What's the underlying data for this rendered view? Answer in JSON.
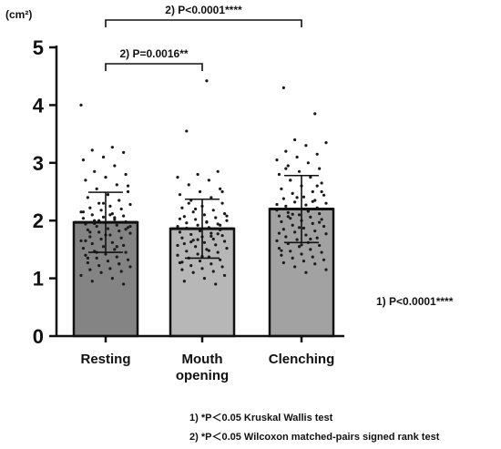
{
  "chart_data": {
    "type": "bar",
    "ylabel": "(cm²)",
    "ylim": [
      0,
      5
    ],
    "yticks": [
      "0",
      "1",
      "2",
      "3",
      "4",
      "5"
    ],
    "categories": [
      "Resting",
      "Mouth opening",
      "Clenching"
    ],
    "category_lines": [
      [
        "Resting"
      ],
      [
        "Mouth",
        "opening"
      ],
      [
        "Clenching"
      ]
    ],
    "values": [
      1.97,
      1.86,
      2.2
    ],
    "sd": [
      0.52,
      0.51,
      0.58
    ],
    "bar_colors": [
      "#848484",
      "#b7b7b7",
      "#a2a2a2"
    ],
    "points": [
      [
        4.0,
        3.27,
        3.22,
        3.18,
        3.1,
        3.05,
        2.95,
        2.85,
        2.8,
        2.75,
        2.7,
        2.62,
        2.55,
        2.5,
        2.45,
        2.4,
        2.35,
        2.3,
        2.28,
        2.25,
        2.22,
        2.2,
        2.18,
        2.15,
        2.12,
        2.1,
        2.08,
        2.06,
        2.04,
        2.02,
        2.0,
        1.98,
        1.96,
        1.94,
        1.92,
        1.9,
        1.88,
        1.86,
        1.84,
        1.82,
        1.8,
        1.78,
        1.75,
        1.72,
        1.7,
        1.68,
        1.65,
        1.62,
        1.6,
        1.57,
        1.55,
        1.52,
        1.5,
        1.47,
        1.45,
        1.42,
        1.4,
        1.37,
        1.35,
        1.32,
        1.3,
        1.27,
        1.25,
        1.22,
        1.2,
        1.17,
        1.15,
        1.12,
        1.1,
        1.05,
        1.0,
        0.95,
        0.9,
        2.3,
        2.15,
        2.05,
        1.95,
        1.85,
        1.75,
        1.65,
        1.55,
        1.45,
        2.6,
        2.45,
        1.35,
        1.25,
        2.0,
        1.9,
        2.1,
        1.8
      ],
      [
        4.42,
        3.55,
        2.85,
        2.8,
        2.75,
        2.7,
        2.62,
        2.55,
        2.5,
        2.45,
        2.4,
        2.35,
        2.3,
        2.25,
        2.22,
        2.18,
        2.15,
        2.12,
        2.1,
        2.07,
        2.05,
        2.02,
        2.0,
        1.98,
        1.96,
        1.94,
        1.92,
        1.9,
        1.88,
        1.86,
        1.84,
        1.82,
        1.8,
        1.78,
        1.76,
        1.74,
        1.72,
        1.7,
        1.68,
        1.66,
        1.64,
        1.62,
        1.6,
        1.58,
        1.55,
        1.52,
        1.5,
        1.47,
        1.45,
        1.42,
        1.4,
        1.37,
        1.35,
        1.32,
        1.3,
        1.27,
        1.25,
        1.22,
        1.2,
        1.17,
        1.15,
        1.12,
        1.1,
        1.05,
        1.0,
        0.95,
        0.9,
        2.2,
        2.08,
        1.97,
        1.87,
        1.77,
        1.67,
        1.57,
        1.48,
        2.3,
        1.92,
        1.83,
        2.03,
        1.73,
        1.63,
        2.5,
        1.38,
        1.28
      ],
      [
        4.3,
        3.85,
        3.4,
        3.35,
        3.3,
        3.2,
        3.15,
        3.1,
        3.05,
        3.0,
        2.95,
        2.9,
        2.85,
        2.8,
        2.75,
        2.7,
        2.65,
        2.6,
        2.55,
        2.5,
        2.47,
        2.44,
        2.41,
        2.38,
        2.35,
        2.32,
        2.3,
        2.27,
        2.25,
        2.22,
        2.2,
        2.18,
        2.16,
        2.14,
        2.12,
        2.1,
        2.08,
        2.06,
        2.04,
        2.02,
        2.0,
        1.98,
        1.95,
        1.92,
        1.9,
        1.87,
        1.85,
        1.82,
        1.8,
        1.77,
        1.75,
        1.72,
        1.7,
        1.67,
        1.65,
        1.62,
        1.6,
        1.57,
        1.55,
        1.52,
        1.5,
        1.47,
        1.45,
        1.42,
        1.4,
        1.37,
        1.35,
        1.32,
        1.3,
        1.27,
        1.25,
        1.2,
        1.15,
        1.1,
        2.9,
        2.6,
        2.4,
        2.28,
        2.17,
        2.07,
        1.97,
        1.88,
        1.78,
        1.68,
        2.7,
        2.5,
        1.58,
        1.48,
        2.33,
        2.11
      ]
    ],
    "brackets": [
      {
        "from": 0,
        "to": 2,
        "label": "2) P<0.0001****",
        "level": 1
      },
      {
        "from": 0,
        "to": 1,
        "label": "2) P=0.0016**",
        "level": 0
      }
    ],
    "side_annotation": "1) P<0.0001****",
    "footnotes": [
      "1) *P＜0.05  Kruskal Wallis test",
      "2) *P＜0.05  Wilcoxon matched-pairs signed rank test"
    ]
  }
}
